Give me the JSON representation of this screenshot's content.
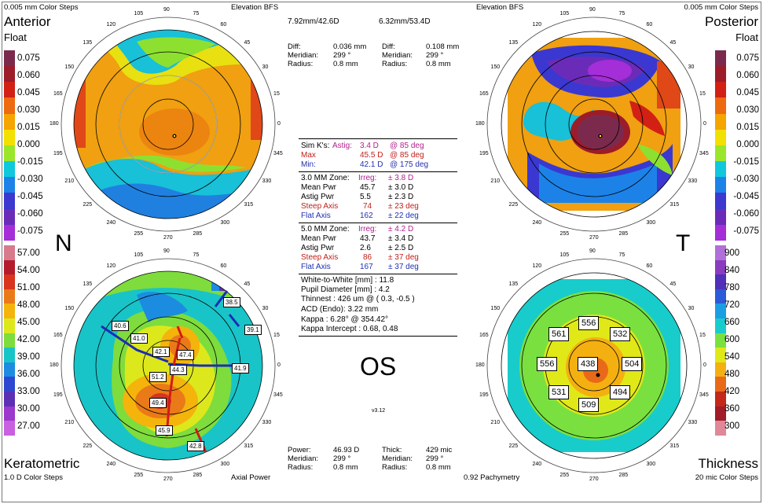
{
  "window": {
    "os_label": "OS",
    "version": "v3.12",
    "nasal_label": "N",
    "temporal_label": "T"
  },
  "anterior": {
    "steps": "0.005 mm Color Steps",
    "title": "Anterior",
    "subtitle": "Float",
    "map_type": "Elevation BFS",
    "bfs": "7.92mm/42.6D",
    "diff_label": "Diff:",
    "diff_value": "0.036 mm",
    "meridian_label": "Meridian:",
    "meridian_value": "299 °",
    "radius_label": "Radius:",
    "radius_value": "0.8 mm"
  },
  "posterior": {
    "steps": "0.005 mm Color Steps",
    "title": "Posterior",
    "subtitle": "Float",
    "map_type": "Elevation BFS",
    "bfs": "6.32mm/53.4D",
    "diff_label": "Diff:",
    "diff_value": "0.108 mm",
    "meridian_label": "Meridian:",
    "meridian_value": "299 °",
    "radius_label": "Radius:",
    "radius_value": "0.8 mm"
  },
  "keratometric": {
    "title": "Keratometric",
    "steps": "1.0 D Color Steps",
    "map_type": "Axial Power",
    "power_label": "Power:",
    "power_value": "46.93 D",
    "meridian_label": "Meridian:",
    "meridian_value": "299 °",
    "radius_label": "Radius:",
    "radius_value": "0.8 mm",
    "map_values": [
      "40.6",
      "41.0",
      "38.5",
      "39.1",
      "42.1",
      "47.4",
      "44.3",
      "41.9",
      "51.2",
      "49.4",
      "45.9",
      "42.8"
    ]
  },
  "thickness": {
    "title": "Thickness",
    "steps": "20 mic Color Steps",
    "map_type": "0.92 Pachymetry",
    "thick_label": "Thick:",
    "thick_value": "429 mic",
    "meridian_label": "Meridian:",
    "meridian_value": "299 °",
    "radius_label": "Radius:",
    "radius_value": "0.8 mm",
    "values": {
      "top": "556",
      "top_left": "561",
      "top_right": "532",
      "left": "556",
      "center": "438",
      "right": "504",
      "bottom_left": "531",
      "bottom_right": "494",
      "bottom": "509"
    }
  },
  "elevation_scale": {
    "labels": [
      "0.075",
      "0.060",
      "0.045",
      "0.030",
      "0.015",
      "0.000",
      "-0.015",
      "-0.030",
      "-0.045",
      "-0.060",
      "-0.075"
    ],
    "colors": [
      "#7b2a4e",
      "#9c1c2a",
      "#d22014",
      "#ee6a10",
      "#f5a400",
      "#f2e000",
      "#9ae62a",
      "#10c8dc",
      "#1c82e8",
      "#3c38d0",
      "#6a2cb8",
      "#a42ed8"
    ]
  },
  "power_scale": {
    "labels": [
      "57.00",
      "54.00",
      "51.00",
      "48.00",
      "45.00",
      "42.00",
      "39.00",
      "36.00",
      "33.00",
      "30.00",
      "27.00"
    ],
    "colors": [
      "#d77a8c",
      "#b41c2c",
      "#d8341e",
      "#ea7a18",
      "#f4b40c",
      "#dce81c",
      "#7edc3c",
      "#18c4c8",
      "#1c8ce0",
      "#2c48d0",
      "#5c30b4",
      "#9c38cc",
      "#c860e0"
    ]
  },
  "thickness_scale": {
    "labels": [
      "900",
      "840",
      "780",
      "720",
      "660",
      "600",
      "540",
      "480",
      "420",
      "360",
      "300"
    ],
    "colors": [
      "#b070d8",
      "#8a3cc0",
      "#5030b8",
      "#2c5ad8",
      "#1c9ee4",
      "#18cccc",
      "#7ae040",
      "#e0e818",
      "#f4b010",
      "#e86a18",
      "#c42818",
      "#a01c28",
      "#e08898"
    ]
  },
  "center": {
    "simk_label": "Sim K's:",
    "simk_astig_label": "Astig:",
    "simk_astig_value": "3.4 D",
    "simk_astig_axis": "@ 85 deg",
    "max_label": "Max",
    "max_value": "45.5 D",
    "max_axis": "@ 85 deg",
    "min_label": "Min:",
    "min_value": "42.1 D",
    "min_axis": "@ 175 deg",
    "zone3": {
      "label": "3.0 MM Zone:",
      "irreg_label": "Irreg:",
      "irreg_value": "± 3.8 D",
      "mean_label": "Mean Pwr",
      "mean_value": "45.7",
      "mean_sd": "± 3.0 D",
      "astig_label": "Astig Pwr",
      "astig_value": "5.5",
      "astig_sd": "± 2.3 D",
      "steep_label": "Steep Axis",
      "steep_value": "74",
      "steep_sd": "± 23 deg",
      "flat_label": "Flat Axis",
      "flat_value": "162",
      "flat_sd": "± 22 deg"
    },
    "zone5": {
      "label": "5.0 MM Zone:",
      "irreg_label": "Irreg:",
      "irreg_value": "± 4.2 D",
      "mean_label": "Mean Pwr",
      "mean_value": "43.7",
      "mean_sd": "± 3.4 D",
      "astig_label": "Astig Pwr",
      "astig_value": "2.6",
      "astig_sd": "± 2.5 D",
      "steep_label": "Steep Axis",
      "steep_value": "86",
      "steep_sd": "± 37 deg",
      "flat_label": "Flat Axis",
      "flat_value": "167",
      "flat_sd": "± 37 deg"
    },
    "wtw": "White-to-White [mm] : 11.8",
    "pupil": "Pupil Diameter [mm] :  4.2",
    "thinnest": "Thinnest : 426 um @ ( 0.3, -0.5 )",
    "acd": "ACD (Endo): 3.22 mm",
    "kappa": "Kappa : 6.28° @ 354.42°",
    "kappa_intercept": "Kappa Intercept : 0.68, 0.48"
  },
  "degree_labels": [
    "90",
    "105",
    "120",
    "135",
    "150",
    "165",
    "180",
    "195",
    "210",
    "225",
    "240",
    "255",
    "270",
    "285",
    "300",
    "315",
    "330",
    "345",
    "0",
    "15",
    "30",
    "45",
    "60",
    "75"
  ]
}
